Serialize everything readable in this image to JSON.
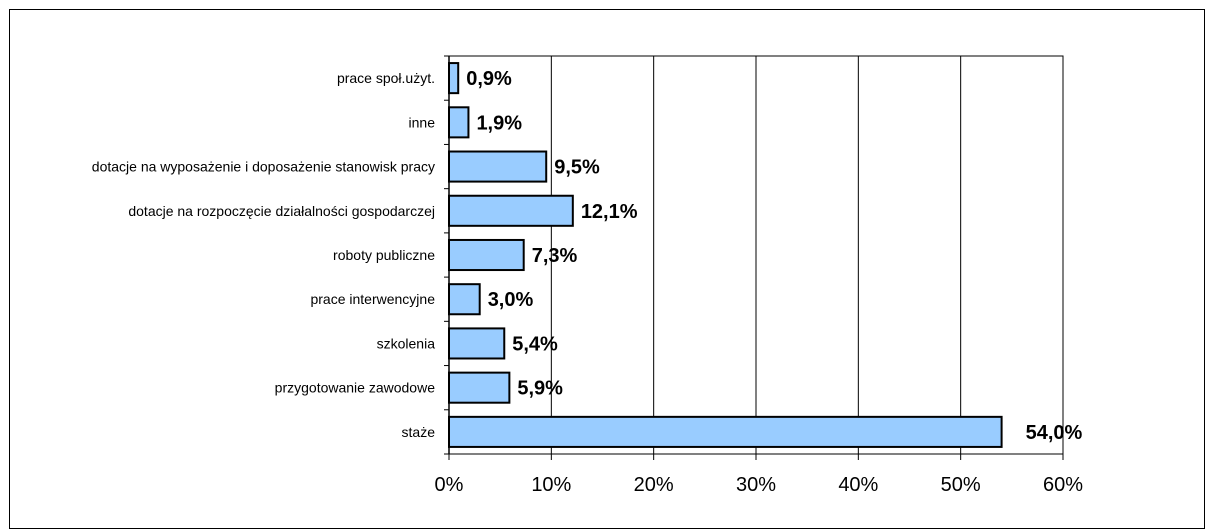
{
  "chart_data": {
    "type": "bar",
    "orientation": "horizontal",
    "title": "",
    "xlabel": "",
    "ylabel": "",
    "categories": [
      "prace społ.użyt.",
      "inne",
      "dotacje na wyposażenie i doposażenie stanowisk pracy",
      "dotacje na rozpoczęcie działalności gospodarczej",
      "roboty publiczne",
      "prace interwencyjne",
      "szkolenia",
      "przygotowanie zawodowe",
      "staże"
    ],
    "values": [
      0.9,
      1.9,
      9.5,
      12.1,
      7.3,
      3.0,
      5.4,
      5.9,
      54.0
    ],
    "value_labels": [
      "0,9%",
      "1,9%",
      "9,5%",
      "12,1%",
      "7,3%",
      "3,0%",
      "5,4%",
      "5,9%",
      "54,0%"
    ],
    "xlim": [
      0,
      60
    ],
    "xticks": [
      0,
      10,
      20,
      30,
      40,
      50,
      60
    ],
    "xtick_labels": [
      "0%",
      "10%",
      "20%",
      "30%",
      "40%",
      "50%",
      "60%"
    ],
    "grid": "vertical",
    "legend": "none",
    "colors": {
      "bar": "#99ccff",
      "bar_border": "#000000",
      "gridline": "#000000",
      "background": "#ffffff"
    }
  }
}
